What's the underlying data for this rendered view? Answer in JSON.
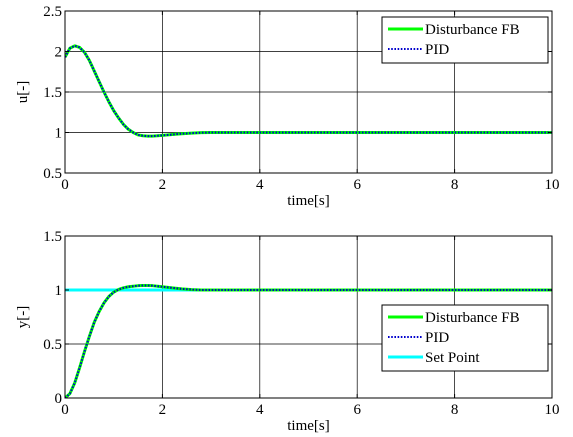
{
  "chart_data": [
    {
      "type": "line",
      "xlabel": "time[s]",
      "ylabel": "u[-]",
      "xlim": [
        0,
        10
      ],
      "ylim": [
        0.5,
        2.5
      ],
      "xticks": [
        0,
        2,
        4,
        6,
        8,
        10
      ],
      "yticks": [
        0.5,
        1,
        1.5,
        2,
        2.5
      ],
      "xtick_labels": [
        "0",
        "2",
        "4",
        "6",
        "8",
        "10"
      ],
      "ytick_labels": [
        "0.5",
        "1",
        "1.5",
        "2",
        "2.5"
      ],
      "grid": true,
      "legend_position": "top-right",
      "series": [
        {
          "name": "Disturbance FB",
          "color": "#00ff00",
          "style": "solid",
          "x": [
            0,
            0.1,
            0.2,
            0.3,
            0.4,
            0.5,
            0.6,
            0.7,
            0.8,
            0.9,
            1.0,
            1.1,
            1.2,
            1.3,
            1.4,
            1.5,
            1.6,
            1.7,
            1.8,
            1.9,
            2.0,
            2.2,
            2.4,
            2.6,
            2.8,
            3.0,
            4,
            5,
            6,
            7,
            8,
            9,
            10
          ],
          "y": [
            1.93,
            2.04,
            2.07,
            2.05,
            1.99,
            1.89,
            1.76,
            1.63,
            1.5,
            1.38,
            1.27,
            1.18,
            1.1,
            1.04,
            1.0,
            0.97,
            0.96,
            0.955,
            0.955,
            0.96,
            0.965,
            0.975,
            0.985,
            0.992,
            0.998,
            1.0,
            1.0,
            1.0,
            1.0,
            1.0,
            1.0,
            1.0,
            1.0
          ]
        },
        {
          "name": "PID",
          "color": "#0000cc",
          "style": "dotted",
          "x": [
            0,
            0.1,
            0.2,
            0.3,
            0.4,
            0.5,
            0.6,
            0.7,
            0.8,
            0.9,
            1.0,
            1.1,
            1.2,
            1.3,
            1.4,
            1.5,
            1.6,
            1.7,
            1.8,
            1.9,
            2.0,
            2.2,
            2.4,
            2.6,
            2.8,
            3.0,
            4,
            5,
            6,
            7,
            8,
            9,
            10
          ],
          "y": [
            1.93,
            2.04,
            2.07,
            2.05,
            1.99,
            1.89,
            1.76,
            1.63,
            1.5,
            1.38,
            1.27,
            1.18,
            1.1,
            1.04,
            1.0,
            0.97,
            0.96,
            0.955,
            0.955,
            0.96,
            0.965,
            0.975,
            0.985,
            0.992,
            0.998,
            1.0,
            1.0,
            1.0,
            1.0,
            1.0,
            1.0,
            1.0,
            1.0
          ]
        }
      ]
    },
    {
      "type": "line",
      "xlabel": "time[s]",
      "ylabel": "y[-]",
      "xlim": [
        0,
        10
      ],
      "ylim": [
        0,
        1.5
      ],
      "xticks": [
        0,
        2,
        4,
        6,
        8,
        10
      ],
      "yticks": [
        0,
        0.5,
        1,
        1.5
      ],
      "xtick_labels": [
        "0",
        "2",
        "4",
        "6",
        "8",
        "10"
      ],
      "ytick_labels": [
        "0",
        "0.5",
        "1",
        "1.5"
      ],
      "grid": true,
      "legend_position": "bottom-right",
      "series": [
        {
          "name": "Disturbance FB",
          "color": "#00ff00",
          "style": "solid",
          "x": [
            0,
            0.1,
            0.2,
            0.3,
            0.4,
            0.5,
            0.6,
            0.7,
            0.8,
            0.9,
            1.0,
            1.1,
            1.2,
            1.3,
            1.4,
            1.5,
            1.6,
            1.7,
            1.8,
            1.9,
            2.0,
            2.2,
            2.4,
            2.6,
            2.8,
            3.0,
            4,
            5,
            6,
            7,
            8,
            9,
            10
          ],
          "y": [
            0,
            0.04,
            0.14,
            0.28,
            0.43,
            0.57,
            0.7,
            0.8,
            0.88,
            0.94,
            0.98,
            1.005,
            1.02,
            1.03,
            1.035,
            1.04,
            1.042,
            1.042,
            1.04,
            1.035,
            1.03,
            1.02,
            1.01,
            1.004,
            1.0,
            1.0,
            1.0,
            1.0,
            1.0,
            1.0,
            1.0,
            1.0,
            1.0
          ]
        },
        {
          "name": "PID",
          "color": "#0000cc",
          "style": "dotted",
          "x": [
            0,
            0.1,
            0.2,
            0.3,
            0.4,
            0.5,
            0.6,
            0.7,
            0.8,
            0.9,
            1.0,
            1.1,
            1.2,
            1.3,
            1.4,
            1.5,
            1.6,
            1.7,
            1.8,
            1.9,
            2.0,
            2.2,
            2.4,
            2.6,
            2.8,
            3.0,
            4,
            5,
            6,
            7,
            8,
            9,
            10
          ],
          "y": [
            0,
            0.04,
            0.14,
            0.28,
            0.43,
            0.57,
            0.7,
            0.8,
            0.88,
            0.94,
            0.98,
            1.005,
            1.02,
            1.03,
            1.035,
            1.04,
            1.042,
            1.042,
            1.04,
            1.035,
            1.03,
            1.02,
            1.01,
            1.004,
            1.0,
            1.0,
            1.0,
            1.0,
            1.0,
            1.0,
            1.0,
            1.0,
            1.0
          ]
        },
        {
          "name": "Set Point",
          "color": "#00ffff",
          "style": "solid",
          "x": [
            0,
            10
          ],
          "y": [
            1,
            1
          ]
        }
      ]
    }
  ]
}
